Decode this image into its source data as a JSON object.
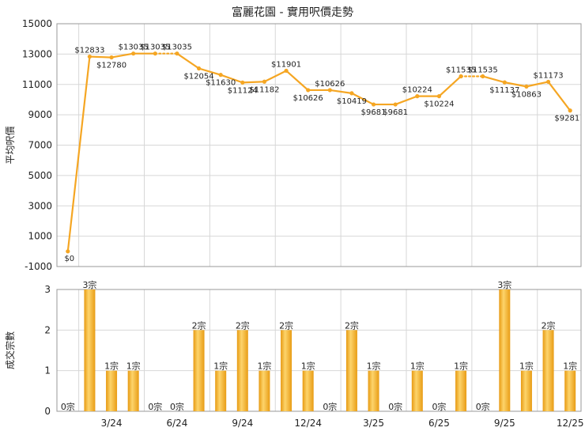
{
  "title": "富麗花園 - 實用呎價走勢",
  "chart_data": [
    {
      "type": "line",
      "title": "富麗花園 - 實用呎價走勢",
      "ylabel": "平均呎價",
      "ylim": [
        -1000,
        15000
      ],
      "yticks": [
        -1000,
        1000,
        3000,
        5000,
        7000,
        9000,
        11000,
        13000,
        15000
      ],
      "grid": true,
      "color": "#f5a623",
      "series": [
        {
          "values": [
            0,
            12833,
            12780,
            13035,
            13035,
            13035,
            12054,
            11630,
            11124,
            11182,
            11901,
            10626,
            10626,
            10419,
            9681,
            9681,
            10224,
            10224,
            11535,
            11535,
            11137,
            10863,
            11173,
            9281
          ],
          "labels": [
            "$0",
            "$12833",
            "$12780",
            "$13035",
            "$13035",
            "$13035",
            "$12054",
            "$11630",
            "$11124",
            "$11182",
            "$11901",
            "$10626",
            "$10626",
            "$10419",
            "$9681",
            "$9681",
            "$10224",
            "$10224",
            "$11535",
            "$11535",
            "$11137",
            "$10863",
            "$11173",
            "$9281"
          ],
          "dotted_segments": [
            4,
            18
          ]
        }
      ]
    },
    {
      "type": "bar",
      "ylabel": "成交宗數",
      "ylim": [
        0,
        3
      ],
      "yticks": [
        0,
        1,
        2,
        3
      ],
      "grid": true,
      "categories": [
        "",
        "",
        "3/24",
        "",
        "",
        "6/24",
        "",
        "",
        "9/24",
        "",
        "",
        "12/24",
        "",
        "",
        "3/25",
        "",
        "",
        "6/25",
        "",
        "",
        "9/25",
        "",
        "",
        "12/25"
      ],
      "values": [
        0,
        3,
        1,
        1,
        0,
        0,
        2,
        1,
        2,
        1,
        2,
        1,
        0,
        2,
        1,
        0,
        1,
        0,
        1,
        0,
        3,
        1,
        2,
        1
      ],
      "labels": [
        "0宗",
        "3宗",
        "1宗",
        "1宗",
        "0宗",
        "0宗",
        "2宗",
        "1宗",
        "2宗",
        "1宗",
        "2宗",
        "1宗",
        "0宗",
        "2宗",
        "1宗",
        "0宗",
        "1宗",
        "0宗",
        "1宗",
        "0宗",
        "3宗",
        "1宗",
        "2宗",
        "1宗"
      ]
    }
  ]
}
